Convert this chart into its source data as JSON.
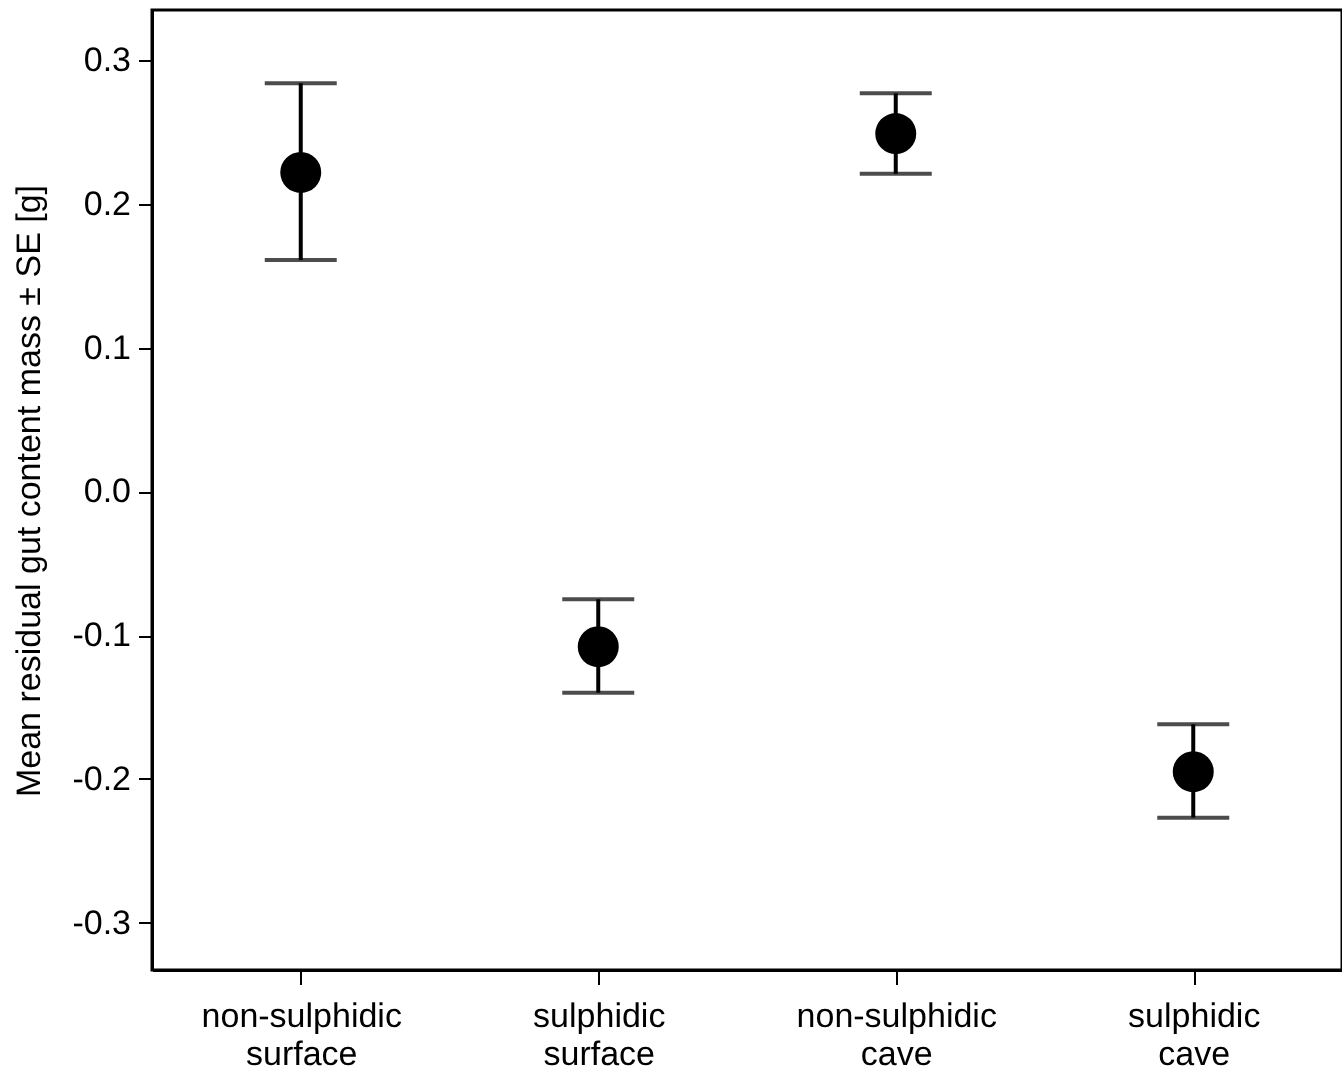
{
  "chart_data": {
    "type": "scatter",
    "ylabel": "Mean residual gut content mass ± SE [g]",
    "categories": [
      "non-sulphidic\nsurface",
      "sulphidic\nsurface",
      "non-sulphidic\ncave",
      "sulphidic\ncave"
    ],
    "values": [
      0.222,
      -0.108,
      0.249,
      -0.195
    ],
    "errors": [
      [
        0.161,
        0.284
      ],
      [
        -0.14,
        -0.075
      ],
      [
        0.221,
        0.277
      ],
      [
        -0.227,
        -0.162
      ]
    ],
    "color": "#000000",
    "marker": "circle",
    "grid": false,
    "ylim": [
      -0.333,
      0.335
    ],
    "yticks": [
      {
        "value": -0.3,
        "label": "-0.3"
      },
      {
        "value": -0.2,
        "label": "-0.2"
      },
      {
        "value": -0.1,
        "label": "-0.1"
      },
      {
        "value": 0,
        "label": "0.0"
      },
      {
        "value": 0.1,
        "label": "0.1"
      },
      {
        "value": 0.2,
        "label": "0.2"
      },
      {
        "value": 0.3,
        "label": "0.3"
      }
    ]
  }
}
